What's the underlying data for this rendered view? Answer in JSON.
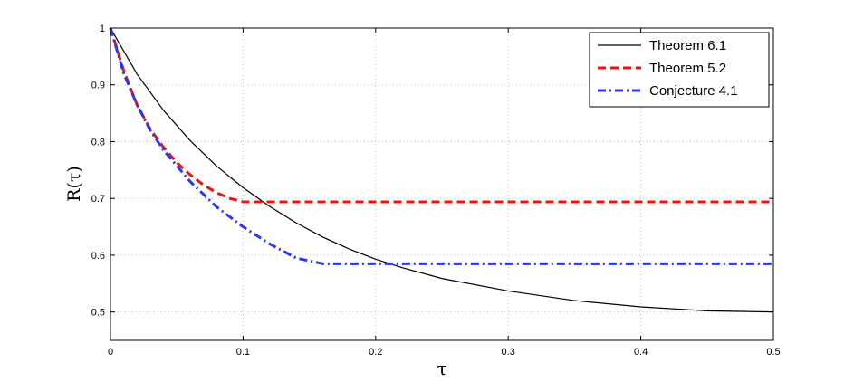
{
  "chart_data": {
    "type": "line",
    "xlabel": "τ",
    "ylabel": "R(τ)",
    "xlim": [
      0,
      0.5
    ],
    "ylim": [
      0.45,
      1
    ],
    "xticks": [
      0,
      0.1,
      0.2,
      0.3,
      0.4,
      0.5
    ],
    "xtick_labels": [
      "0",
      "0.1",
      "0.2",
      "0.3",
      "0.4",
      "0.5"
    ],
    "yticks": [
      0.5,
      0.6,
      0.7,
      0.8,
      0.9,
      1
    ],
    "ytick_labels": [
      "0.5",
      "0.6",
      "0.7",
      "0.8",
      "0.9",
      "1"
    ],
    "grid": true,
    "legend_position": "top-right",
    "series": [
      {
        "name": "Theorem 6.1",
        "color": "#000000",
        "style": "solid",
        "x": [
          0,
          0.02,
          0.04,
          0.06,
          0.08,
          0.1,
          0.12,
          0.14,
          0.16,
          0.18,
          0.2,
          0.22,
          0.25,
          0.3,
          0.35,
          0.4,
          0.45,
          0.5
        ],
        "y": [
          1.0,
          0.919,
          0.855,
          0.802,
          0.757,
          0.719,
          0.686,
          0.657,
          0.632,
          0.611,
          0.593,
          0.578,
          0.559,
          0.537,
          0.52,
          0.509,
          0.502,
          0.5
        ]
      },
      {
        "name": "Theorem 5.2",
        "color": "#e8150f",
        "style": "dashed",
        "x": [
          0,
          0.01,
          0.02,
          0.03,
          0.04,
          0.05,
          0.06,
          0.07,
          0.08,
          0.09,
          0.1,
          0.2,
          0.3,
          0.4,
          0.5
        ],
        "y": [
          1.0,
          0.925,
          0.865,
          0.822,
          0.79,
          0.763,
          0.742,
          0.724,
          0.71,
          0.7,
          0.694,
          0.694,
          0.694,
          0.694,
          0.694
        ]
      },
      {
        "name": "Conjecture 4.1",
        "color": "#2a36f0",
        "style": "dashdot",
        "x": [
          0,
          0.01,
          0.02,
          0.03,
          0.04,
          0.06,
          0.08,
          0.1,
          0.12,
          0.14,
          0.16,
          0.2,
          0.3,
          0.4,
          0.5
        ],
        "y": [
          1.0,
          0.92,
          0.865,
          0.82,
          0.785,
          0.73,
          0.685,
          0.65,
          0.62,
          0.595,
          0.585,
          0.585,
          0.585,
          0.585,
          0.585
        ]
      }
    ]
  }
}
